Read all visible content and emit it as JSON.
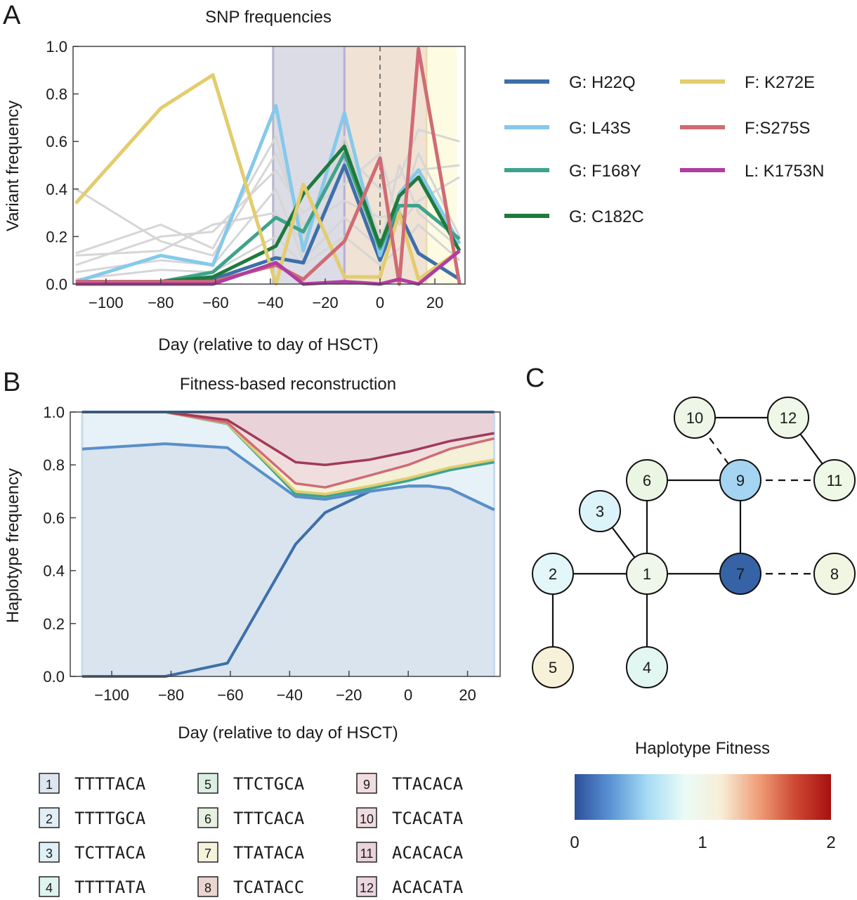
{
  "panels": {
    "A": "A",
    "B": "B",
    "C": "C"
  },
  "chart_data": [
    {
      "type": "line",
      "panel": "A",
      "title": "SNP frequencies",
      "xlabel": "Day (relative to day of HSCT)",
      "ylabel": "Variant frequency",
      "xlim": [
        -112,
        31
      ],
      "ylim": [
        0,
        1.0
      ],
      "xticks": [
        -100,
        -80,
        -60,
        -40,
        -20,
        0,
        20
      ],
      "yticks": [
        "0.0",
        "0.2",
        "0.4",
        "0.6",
        "0.8",
        "1.0"
      ],
      "shaded_intervals": [
        {
          "from": -39,
          "to": -13,
          "color": "#dcdce6"
        },
        {
          "from": -13,
          "to": 17,
          "color": "#f0e2d4"
        },
        {
          "from": 17,
          "to": 28,
          "color": "#fdfbe2"
        }
      ],
      "reference_line_x": 0,
      "grey_series": [
        {
          "x": [
            -111,
            -80,
            -61,
            -38,
            -28,
            -13,
            0,
            7,
            14,
            29
          ],
          "values": [
            0.4,
            0.18,
            0.12,
            0.55,
            0.25,
            0.35,
            0.28,
            0.3,
            0.55,
            0.2
          ]
        },
        {
          "x": [
            -111,
            -80,
            -61,
            -38,
            -28,
            -13,
            0,
            7,
            14,
            29
          ],
          "values": [
            0.13,
            0.25,
            0.15,
            0.62,
            0.2,
            0.55,
            0.4,
            0.45,
            0.65,
            0.6
          ]
        },
        {
          "x": [
            -111,
            -80,
            -61,
            -38,
            -28,
            -13,
            0,
            7,
            14,
            29
          ],
          "values": [
            0.08,
            0.2,
            0.22,
            0.48,
            0.3,
            0.42,
            0.55,
            0.25,
            0.35,
            0.45
          ]
        },
        {
          "x": [
            -111,
            -80,
            -61,
            -38,
            -28,
            -13,
            0,
            7,
            14,
            29
          ],
          "values": [
            0.05,
            0.1,
            0.08,
            0.4,
            0.1,
            0.28,
            0.15,
            0.5,
            0.3,
            0.15
          ]
        },
        {
          "x": [
            -111,
            -80,
            -61,
            -38,
            -28,
            -13,
            0,
            7,
            14,
            29
          ],
          "values": [
            0.12,
            0.14,
            0.25,
            0.3,
            0.18,
            0.62,
            0.2,
            0.35,
            0.48,
            0.5
          ]
        },
        {
          "x": [
            -111,
            -80,
            -61,
            -38,
            -28,
            -13,
            0,
            7,
            14,
            29
          ],
          "values": [
            0.02,
            0.06,
            0.05,
            0.2,
            0.08,
            0.2,
            0.08,
            0.15,
            0.25,
            0.1
          ]
        }
      ],
      "series": [
        {
          "name": "G: H22Q",
          "color": "#3e6fa8",
          "x": [
            -111,
            -80,
            -61,
            -38,
            -28,
            -13,
            0,
            7,
            14,
            29
          ],
          "values": [
            0.01,
            0.01,
            0.02,
            0.11,
            0.09,
            0.5,
            0.1,
            0.3,
            0.13,
            0.02
          ]
        },
        {
          "name": "G: L43S",
          "color": "#86c9ea",
          "x": [
            -111,
            -80,
            -61,
            -38,
            -28,
            -13,
            0,
            7,
            14,
            29
          ],
          "values": [
            0.01,
            0.12,
            0.08,
            0.75,
            0.14,
            0.72,
            0.12,
            0.38,
            0.48,
            0.17
          ]
        },
        {
          "name": "G: F168Y",
          "color": "#3fa38c",
          "x": [
            -111,
            -80,
            -61,
            -38,
            -28,
            -13,
            0,
            7,
            14,
            29
          ],
          "values": [
            0.01,
            0.01,
            0.05,
            0.28,
            0.22,
            0.55,
            0.15,
            0.33,
            0.33,
            0.19
          ]
        },
        {
          "name": "G: C182C",
          "color": "#1f7a3c",
          "x": [
            -111,
            -80,
            -61,
            -38,
            -28,
            -13,
            0,
            7,
            14,
            29
          ],
          "values": [
            0.01,
            0.01,
            0.03,
            0.16,
            0.38,
            0.58,
            0.16,
            0.37,
            0.45,
            0.14
          ]
        },
        {
          "name": "F: K272E",
          "color": "#e3cc6d",
          "x": [
            -111,
            -80,
            -61,
            -38,
            -28,
            -13,
            0,
            7,
            14,
            29
          ],
          "values": [
            0.34,
            0.74,
            0.88,
            0.0,
            0.42,
            0.03,
            0.03,
            0.3,
            0.02,
            0.14
          ]
        },
        {
          "name": "F:S275S",
          "color": "#d06b74",
          "x": [
            -111,
            -80,
            -61,
            -38,
            -28,
            -13,
            0,
            7,
            14,
            29
          ],
          "values": [
            0.01,
            0.01,
            0.01,
            0.08,
            0.02,
            0.18,
            0.53,
            0.0,
            0.99,
            0.0
          ]
        },
        {
          "name": "L: K1753N",
          "color": "#b03da0",
          "x": [
            -111,
            -80,
            -61,
            -38,
            -28,
            -13,
            0,
            7,
            14,
            29
          ],
          "values": [
            0.0,
            0.0,
            0.0,
            0.09,
            0.0,
            0.01,
            0.0,
            0.02,
            0.0,
            0.14
          ]
        }
      ]
    },
    {
      "type": "area",
      "panel": "B",
      "title": "Fitness‐based reconstruction",
      "xlabel": "Day (relative to day of HSCT)",
      "ylabel": "Haplotype frequency",
      "xlim": [
        -114,
        31
      ],
      "ylim": [
        0,
        1.0
      ],
      "xticks": [
        -100,
        -80,
        -60,
        -40,
        -20,
        0,
        20
      ],
      "yticks": [
        "0.0",
        "0.2",
        "0.4",
        "0.6",
        "0.8",
        "1.0"
      ],
      "x": [
        -110,
        -82,
        -61,
        -38,
        -28,
        -13,
        0,
        7,
        14,
        29
      ],
      "boundaries": [
        {
          "color": "#3e6fa8",
          "values": [
            0.0,
            0.0,
            0.05,
            0.5,
            0.62,
            0.7,
            0.72,
            0.72,
            0.71,
            0.63
          ]
        },
        {
          "color": "#5a8fc8",
          "values": [
            0.86,
            0.88,
            0.865,
            0.68,
            0.67,
            0.7,
            0.72,
            0.72,
            0.71,
            0.63
          ]
        },
        {
          "color": "#3fa38c",
          "values": [
            1.0,
            1.0,
            0.955,
            0.69,
            0.68,
            0.71,
            0.74,
            0.76,
            0.78,
            0.81
          ]
        },
        {
          "color": "#e3cc6d",
          "values": [
            1.0,
            1.0,
            0.957,
            0.7,
            0.69,
            0.72,
            0.75,
            0.77,
            0.79,
            0.82
          ]
        },
        {
          "color": "#d06b74",
          "values": [
            1.0,
            1.0,
            0.96,
            0.73,
            0.715,
            0.76,
            0.8,
            0.83,
            0.86,
            0.9
          ]
        },
        {
          "color": "#a03a5a",
          "values": [
            1.0,
            1.0,
            0.97,
            0.81,
            0.8,
            0.82,
            0.85,
            0.87,
            0.89,
            0.92
          ]
        },
        {
          "color": "#3e6fa8",
          "values": [
            1.0,
            1.0,
            1.0,
            1.0,
            1.0,
            1.0,
            1.0,
            1.0,
            1.0,
            1.0
          ]
        }
      ],
      "band_fills": [
        "#d9e4ef",
        "#e6f1f8",
        "#dcebe2",
        "#f5f1d8",
        "#f0dedf",
        "#ead2d9"
      ]
    }
  ],
  "haplotypes": [
    {
      "id": "1",
      "seq": "TTTTACA",
      "color": "#dde6ef"
    },
    {
      "id": "2",
      "seq": "TTTTGCA",
      "color": "#e2eef6"
    },
    {
      "id": "3",
      "seq": "TCTTACA",
      "color": "#dff1f7"
    },
    {
      "id": "4",
      "seq": "TTTTATA",
      "color": "#dff4ef"
    },
    {
      "id": "5",
      "seq": "TTCTGCA",
      "color": "#dbeee2"
    },
    {
      "id": "6",
      "seq": "TTTCACA",
      "color": "#e6f1e2"
    },
    {
      "id": "7",
      "seq": "TTATACA",
      "color": "#f6f3dc"
    },
    {
      "id": "8",
      "seq": "TCATACC",
      "color": "#e9d6d0"
    },
    {
      "id": "9",
      "seq": "TTACACA",
      "color": "#f1dde0"
    },
    {
      "id": "10",
      "seq": "TCACATA",
      "color": "#efdce0"
    },
    {
      "id": "11",
      "seq": "ACACACA",
      "color": "#ead3dc"
    },
    {
      "id": "12",
      "seq": "ACACATA",
      "color": "#ead6df"
    }
  ],
  "network": {
    "nodes": [
      {
        "id": "1",
        "fitness": 0.98,
        "color": "#eef7e9"
      },
      {
        "id": "2",
        "fitness": 0.9,
        "color": "#e3f7fb"
      },
      {
        "id": "3",
        "fitness": 0.85,
        "color": "#dcf3fa"
      },
      {
        "id": "4",
        "fitness": 0.93,
        "color": "#e3f7f2"
      },
      {
        "id": "5",
        "fitness": 1.1,
        "color": "#f8f1d9"
      },
      {
        "id": "6",
        "fitness": 0.98,
        "color": "#eaf5e3"
      },
      {
        "id": "7",
        "fitness": 0.15,
        "color": "#3663a5"
      },
      {
        "id": "8",
        "fitness": 0.99,
        "color": "#f0f6e2"
      },
      {
        "id": "9",
        "fitness": 0.65,
        "color": "#a4d4f1"
      },
      {
        "id": "10",
        "fitness": 0.99,
        "color": "#eef6e8"
      },
      {
        "id": "11",
        "fitness": 0.98,
        "color": "#eef8e6"
      },
      {
        "id": "12",
        "fitness": 0.99,
        "color": "#eef7e8"
      }
    ],
    "edges": [
      {
        "from": "10",
        "to": "12",
        "style": "solid"
      },
      {
        "from": "10",
        "to": "9",
        "style": "dashed"
      },
      {
        "from": "12",
        "to": "11",
        "style": "solid"
      },
      {
        "from": "6",
        "to": "9",
        "style": "solid"
      },
      {
        "from": "9",
        "to": "11",
        "style": "dashed"
      },
      {
        "from": "9",
        "to": "7",
        "style": "solid"
      },
      {
        "from": "6",
        "to": "1",
        "style": "solid"
      },
      {
        "from": "3",
        "to": "1",
        "style": "solid"
      },
      {
        "from": "2",
        "to": "1",
        "style": "solid"
      },
      {
        "from": "1",
        "to": "7",
        "style": "solid"
      },
      {
        "from": "7",
        "to": "8",
        "style": "dashed"
      },
      {
        "from": "1",
        "to": "4",
        "style": "solid"
      },
      {
        "from": "2",
        "to": "5",
        "style": "solid"
      }
    ]
  },
  "colorbar": {
    "title": "Haplotype Fitness",
    "ticks": [
      "0",
      "1",
      "2"
    ],
    "stops": [
      "#2c4f9a",
      "#5b95d6",
      "#a7dcf4",
      "#eafbf7",
      "#f8eed8",
      "#f0a07a",
      "#cf4a34",
      "#a81010"
    ]
  }
}
